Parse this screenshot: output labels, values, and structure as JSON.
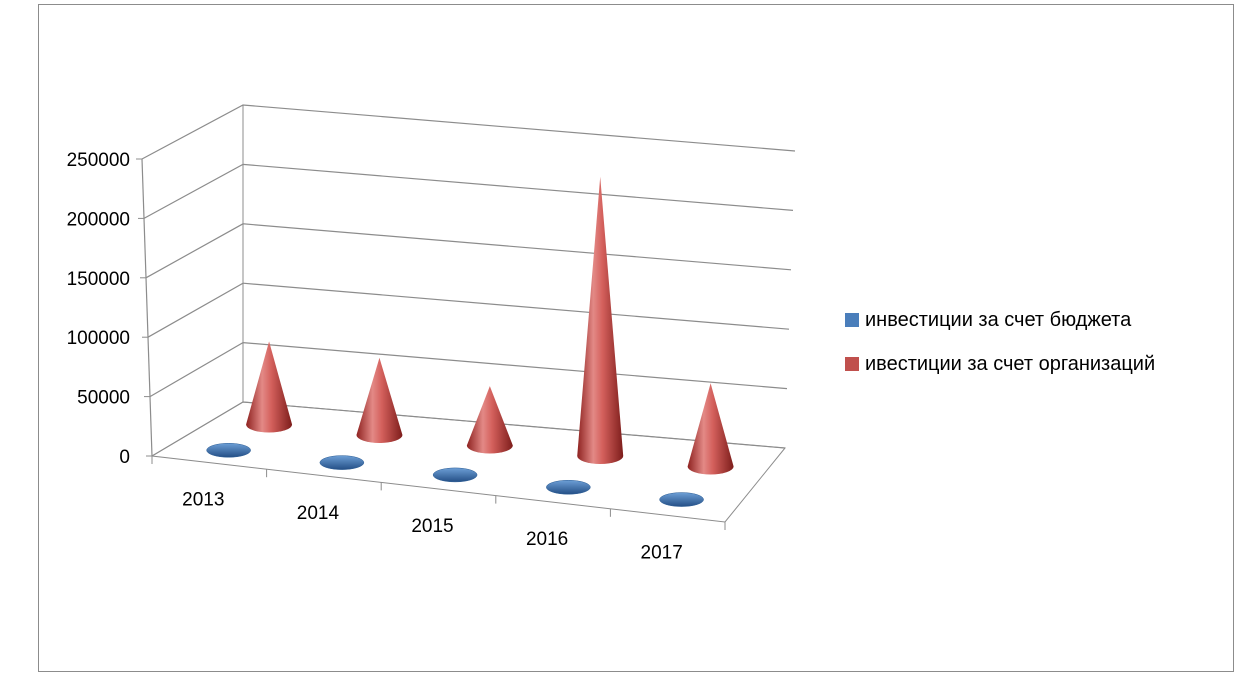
{
  "chart_data": {
    "type": "bar",
    "title": "",
    "xlabel": "",
    "ylabel": "",
    "categories": [
      "2013",
      "2014",
      "2015",
      "2016",
      "2017"
    ],
    "ylim": [
      0,
      250000
    ],
    "y_ticks": [
      "0",
      "50000",
      "100000",
      "150000",
      "200000",
      "250000"
    ],
    "series": [
      {
        "name": "инвестиции за счет бюджета",
        "values": [
          0,
          0,
          0,
          0,
          0
        ],
        "color": "#4a7ebb"
      },
      {
        "name": "ивестиции за счет организаций",
        "values": [
          70000,
          65000,
          50000,
          235000,
          70000
        ],
        "color": "#c0504d"
      }
    ],
    "legend_position": "right",
    "grid": true,
    "bar_shape": "cone-3d"
  }
}
